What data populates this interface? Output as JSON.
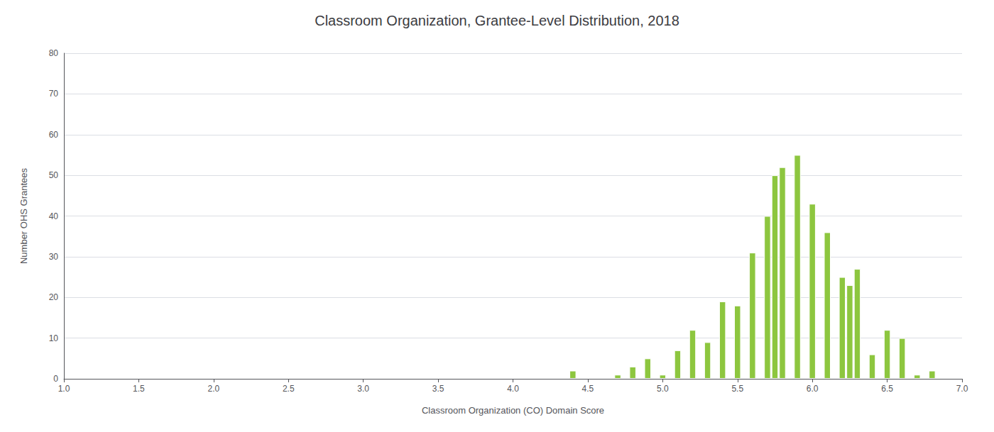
{
  "chart_data": {
    "type": "bar",
    "title": "Classroom Organization, Grantee-Level Distribution, 2018",
    "xlabel": "Classroom Organization (CO) Domain Score",
    "ylabel": "Number OHS Grantees",
    "x": [
      4.4,
      4.7,
      4.8,
      4.9,
      5.0,
      5.1,
      5.2,
      5.3,
      5.4,
      5.5,
      5.6,
      5.7,
      5.75,
      5.8,
      5.9,
      6.0,
      6.1,
      6.2,
      6.25,
      6.3,
      6.4,
      6.5,
      6.6,
      6.7,
      6.8
    ],
    "values": [
      2,
      1,
      3,
      5,
      1,
      7,
      12,
      9,
      19,
      18,
      31,
      40,
      50,
      52,
      55,
      43,
      36,
      25,
      23,
      27,
      6,
      12,
      10,
      1,
      2
    ],
    "color": "#8DC63F",
    "xlim": [
      1,
      7
    ],
    "xticks": [
      {
        "value": 1,
        "label": "1.0"
      },
      1.5,
      {
        "value": 2,
        "label": "2.0"
      },
      2.5,
      {
        "value": 3,
        "label": "3.0"
      },
      3.5,
      {
        "value": 4,
        "label": "4.0"
      },
      4.5,
      {
        "value": 5,
        "label": "5.0"
      },
      5.5,
      {
        "value": 6,
        "label": "6.0"
      },
      6.5,
      {
        "value": 7,
        "label": "7.0"
      }
    ],
    "ylim": [
      0,
      80
    ],
    "yticks": [
      0,
      10,
      20,
      30,
      40,
      50,
      60,
      70,
      80
    ],
    "grid": true
  }
}
